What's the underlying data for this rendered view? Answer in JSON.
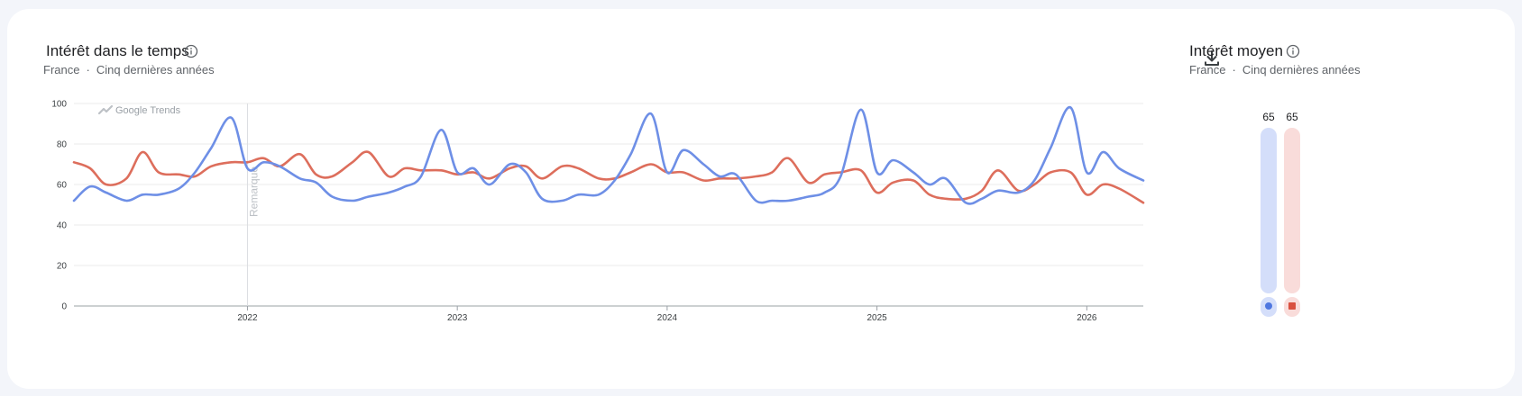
{
  "over_time": {
    "title": "Intérêt dans le temps",
    "region": "France",
    "separator": "·",
    "period": "Cinq dernières années",
    "watermark": "Google Trends",
    "note_label": "Remarque",
    "info_icon": "info-icon",
    "download_icon": "download-icon"
  },
  "average": {
    "title": "Intérêt moyen",
    "region": "France",
    "separator": "·",
    "period": "Cinq dernières années",
    "info_icon": "info-icon"
  },
  "colors": {
    "blue": "#6e8fe6",
    "red": "#dd6e5c",
    "blue_light": "#d4defa",
    "red_light": "#f9dcda"
  },
  "chart_data": [
    {
      "type": "line",
      "title": "Intérêt dans le temps",
      "ylim": [
        0,
        100
      ],
      "yticks": [
        "0",
        "20",
        "40",
        "60",
        "80",
        "100"
      ],
      "xlim": [
        "2021-03-07",
        "2026-04-05"
      ],
      "xticks": [
        {
          "label": "2022",
          "date": "2022-01-02"
        },
        {
          "label": "2023",
          "date": "2023-01-01"
        },
        {
          "label": "2024",
          "date": "2023-12-31"
        },
        {
          "label": "2025",
          "date": "2024-12-29"
        },
        {
          "label": "2026",
          "date": "2025-12-28"
        }
      ],
      "annotation": {
        "label": "Remarque",
        "date": "2022-01-02"
      },
      "grid": true,
      "legend": "none",
      "series": [
        {
          "color": "#6e8fe6",
          "points": [
            [
              "2021-03-07",
              52
            ],
            [
              "2021-04-04",
              59
            ],
            [
              "2021-05-02",
              56
            ],
            [
              "2021-06-06",
              52
            ],
            [
              "2021-07-04",
              55
            ],
            [
              "2021-08-01",
              55
            ],
            [
              "2021-09-05",
              58
            ],
            [
              "2021-10-03",
              66
            ],
            [
              "2021-10-31",
              78
            ],
            [
              "2021-12-05",
              93
            ],
            [
              "2022-01-02",
              68
            ],
            [
              "2022-01-30",
              71
            ],
            [
              "2022-02-27",
              69
            ],
            [
              "2022-04-03",
              63
            ],
            [
              "2022-05-01",
              61
            ],
            [
              "2022-05-29",
              54
            ],
            [
              "2022-07-03",
              52
            ],
            [
              "2022-07-31",
              54
            ],
            [
              "2022-09-04",
              56
            ],
            [
              "2022-10-02",
              59
            ],
            [
              "2022-10-30",
              64
            ],
            [
              "2022-12-04",
              87
            ],
            [
              "2023-01-01",
              66
            ],
            [
              "2023-01-29",
              68
            ],
            [
              "2023-02-26",
              60
            ],
            [
              "2023-04-02",
              70
            ],
            [
              "2023-04-30",
              66
            ],
            [
              "2023-05-28",
              53
            ],
            [
              "2023-07-02",
              52
            ],
            [
              "2023-07-30",
              55
            ],
            [
              "2023-09-03",
              55
            ],
            [
              "2023-10-01",
              62
            ],
            [
              "2023-10-29",
              75
            ],
            [
              "2023-12-03",
              95
            ],
            [
              "2023-12-31",
              66
            ],
            [
              "2024-01-28",
              77
            ],
            [
              "2024-03-03",
              70
            ],
            [
              "2024-03-31",
              64
            ],
            [
              "2024-04-28",
              65
            ],
            [
              "2024-06-02",
              52
            ],
            [
              "2024-06-30",
              52
            ],
            [
              "2024-07-28",
              52
            ],
            [
              "2024-09-01",
              54
            ],
            [
              "2024-09-29",
              56
            ],
            [
              "2024-10-27",
              64
            ],
            [
              "2024-12-01",
              97
            ],
            [
              "2024-12-29",
              66
            ],
            [
              "2025-01-26",
              72
            ],
            [
              "2025-03-02",
              66
            ],
            [
              "2025-03-30",
              60
            ],
            [
              "2025-04-27",
              63
            ],
            [
              "2025-06-01",
              51
            ],
            [
              "2025-06-29",
              53
            ],
            [
              "2025-07-27",
              57
            ],
            [
              "2025-08-31",
              56
            ],
            [
              "2025-09-28",
              62
            ],
            [
              "2025-10-26",
              78
            ],
            [
              "2025-11-30",
              98
            ],
            [
              "2025-12-28",
              66
            ],
            [
              "2026-01-25",
              76
            ],
            [
              "2026-02-22",
              68
            ],
            [
              "2026-04-05",
              62
            ]
          ]
        },
        {
          "color": "#dd6e5c",
          "points": [
            [
              "2021-03-07",
              71
            ],
            [
              "2021-04-04",
              68
            ],
            [
              "2021-05-02",
              60
            ],
            [
              "2021-06-06",
              63
            ],
            [
              "2021-07-04",
              76
            ],
            [
              "2021-08-01",
              66
            ],
            [
              "2021-09-05",
              65
            ],
            [
              "2021-10-03",
              64
            ],
            [
              "2021-10-31",
              69
            ],
            [
              "2021-12-05",
              71
            ],
            [
              "2022-01-02",
              71
            ],
            [
              "2022-01-30",
              73
            ],
            [
              "2022-02-27",
              69
            ],
            [
              "2022-04-03",
              75
            ],
            [
              "2022-05-01",
              65
            ],
            [
              "2022-05-29",
              64
            ],
            [
              "2022-07-03",
              71
            ],
            [
              "2022-07-31",
              76
            ],
            [
              "2022-09-04",
              64
            ],
            [
              "2022-10-02",
              68
            ],
            [
              "2022-10-30",
              67
            ],
            [
              "2022-12-04",
              67
            ],
            [
              "2023-01-01",
              65
            ],
            [
              "2023-01-29",
              66
            ],
            [
              "2023-02-26",
              63
            ],
            [
              "2023-04-02",
              68
            ],
            [
              "2023-04-30",
              69
            ],
            [
              "2023-05-28",
              63
            ],
            [
              "2023-07-02",
              69
            ],
            [
              "2023-07-30",
              68
            ],
            [
              "2023-09-03",
              63
            ],
            [
              "2023-10-01",
              63
            ],
            [
              "2023-10-29",
              66
            ],
            [
              "2023-12-03",
              70
            ],
            [
              "2023-12-31",
              66
            ],
            [
              "2024-01-28",
              66
            ],
            [
              "2024-03-03",
              62
            ],
            [
              "2024-03-31",
              63
            ],
            [
              "2024-04-28",
              63
            ],
            [
              "2024-06-02",
              64
            ],
            [
              "2024-06-30",
              66
            ],
            [
              "2024-07-28",
              73
            ],
            [
              "2024-09-01",
              61
            ],
            [
              "2024-09-29",
              65
            ],
            [
              "2024-10-27",
              66
            ],
            [
              "2024-12-01",
              67
            ],
            [
              "2024-12-29",
              56
            ],
            [
              "2025-01-26",
              61
            ],
            [
              "2025-03-02",
              62
            ],
            [
              "2025-03-30",
              55
            ],
            [
              "2025-04-27",
              53
            ],
            [
              "2025-06-01",
              53
            ],
            [
              "2025-06-29",
              57
            ],
            [
              "2025-07-27",
              67
            ],
            [
              "2025-08-31",
              57
            ],
            [
              "2025-09-28",
              60
            ],
            [
              "2025-10-26",
              66
            ],
            [
              "2025-11-30",
              66
            ],
            [
              "2025-12-28",
              55
            ],
            [
              "2026-01-25",
              60
            ],
            [
              "2026-02-22",
              58
            ],
            [
              "2026-04-05",
              51
            ]
          ]
        }
      ]
    },
    {
      "type": "bar",
      "title": "Intérêt moyen",
      "ylim": [
        0,
        100
      ],
      "values": [
        65,
        65
      ],
      "colors": [
        "#6e8fe6",
        "#dd6e5c"
      ],
      "markers": [
        "circle",
        "square"
      ]
    }
  ]
}
